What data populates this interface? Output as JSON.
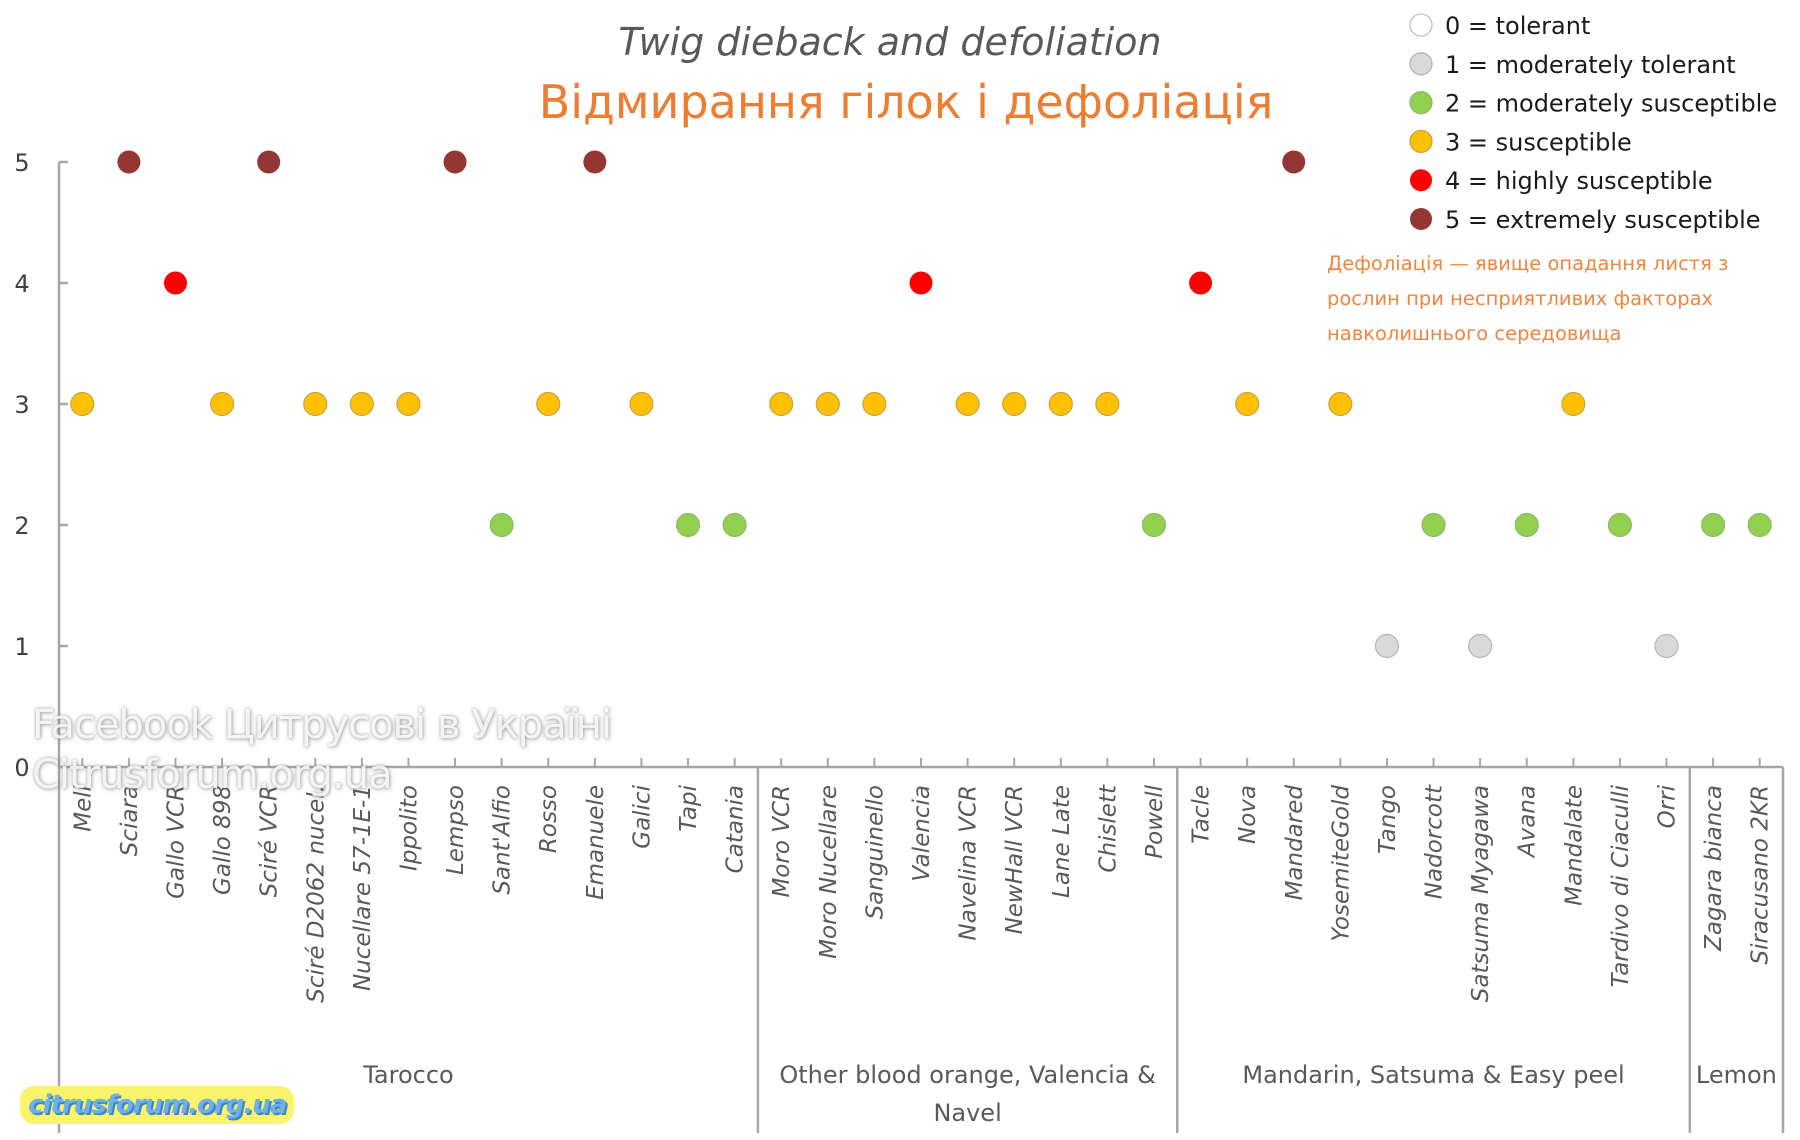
{
  "chart_data": {
    "type": "scatter",
    "title": "Twig dieback and defoliation",
    "subtitle": "Відмирання гілок і дефоліація",
    "xlabel": "",
    "ylabel": "",
    "ylim": [
      0,
      5
    ],
    "yticks": [
      "0",
      "1",
      "2",
      "3",
      "4",
      "5"
    ],
    "grid": false,
    "legend_position": "top-right",
    "legend": [
      {
        "value": 0,
        "label": "0 = tolerant",
        "color": "#FFFFFF"
      },
      {
        "value": 1,
        "label": "1 = moderately tolerant",
        "color": "#D9D9D9"
      },
      {
        "value": 2,
        "label": "2 = moderately susceptible",
        "color": "#92D050"
      },
      {
        "value": 3,
        "label": "3 = susceptible",
        "color": "#FFC000"
      },
      {
        "value": 4,
        "label": "4 = highly susceptible",
        "color": "#FF0000"
      },
      {
        "value": 5,
        "label": "5 = extremely susceptible",
        "color": "#943634"
      }
    ],
    "groups": [
      {
        "name": "Tarocco",
        "categories": [
          "Meli",
          "Sciara",
          "Gallo VCR",
          "Gallo 898",
          "Sciré VCR",
          "Sciré D2062 nucel.",
          "Nucellare 57-1E-1",
          "Ippolito",
          "Lempso",
          "Sant'Alfio",
          "Rosso",
          "Emanuele",
          "Galici",
          "Tapi",
          "Catania"
        ],
        "values": [
          3,
          5,
          4,
          3,
          5,
          3,
          3,
          3,
          5,
          2,
          3,
          5,
          3,
          2,
          2
        ]
      },
      {
        "name": "Other blood orange, Valencia & Navel",
        "name_lines": [
          "Other blood orange, Valencia &",
          "Navel"
        ],
        "categories": [
          "Moro VCR",
          "Moro Nucellare",
          "Sanguinello",
          "Valencia",
          "Navelina VCR",
          "NewHall VCR",
          "Lane Late",
          "Chislett",
          "Powell"
        ],
        "values": [
          3,
          3,
          3,
          4,
          3,
          3,
          3,
          3,
          2
        ]
      },
      {
        "name": "Mandarin, Satsuma & Easy peel",
        "categories": [
          "Tacle",
          "Nova",
          "Mandared",
          "YosemiteGold",
          "Tango",
          "Nadorcott",
          "Satsuma Myagawa",
          "Avana",
          "Mandalate",
          "Tardivo di Ciaculli",
          "Orri"
        ],
        "values": [
          4,
          3,
          5,
          3,
          1,
          2,
          1,
          2,
          3,
          2,
          1
        ]
      },
      {
        "name": "Lemon",
        "categories": [
          "Zagara bianca",
          "Siracusano 2KR"
        ],
        "values": [
          2,
          2
        ]
      }
    ],
    "annotation": [
      "Дефоліація — явище опадання листя з",
      "рослин при несприятливих факторах",
      "навколишнього середовища"
    ]
  },
  "watermarks": {
    "facebook": "Facebook Цитрусові в Україні",
    "site": "Citrusforum.org.ua",
    "badge": "citrusforum.org.ua"
  }
}
